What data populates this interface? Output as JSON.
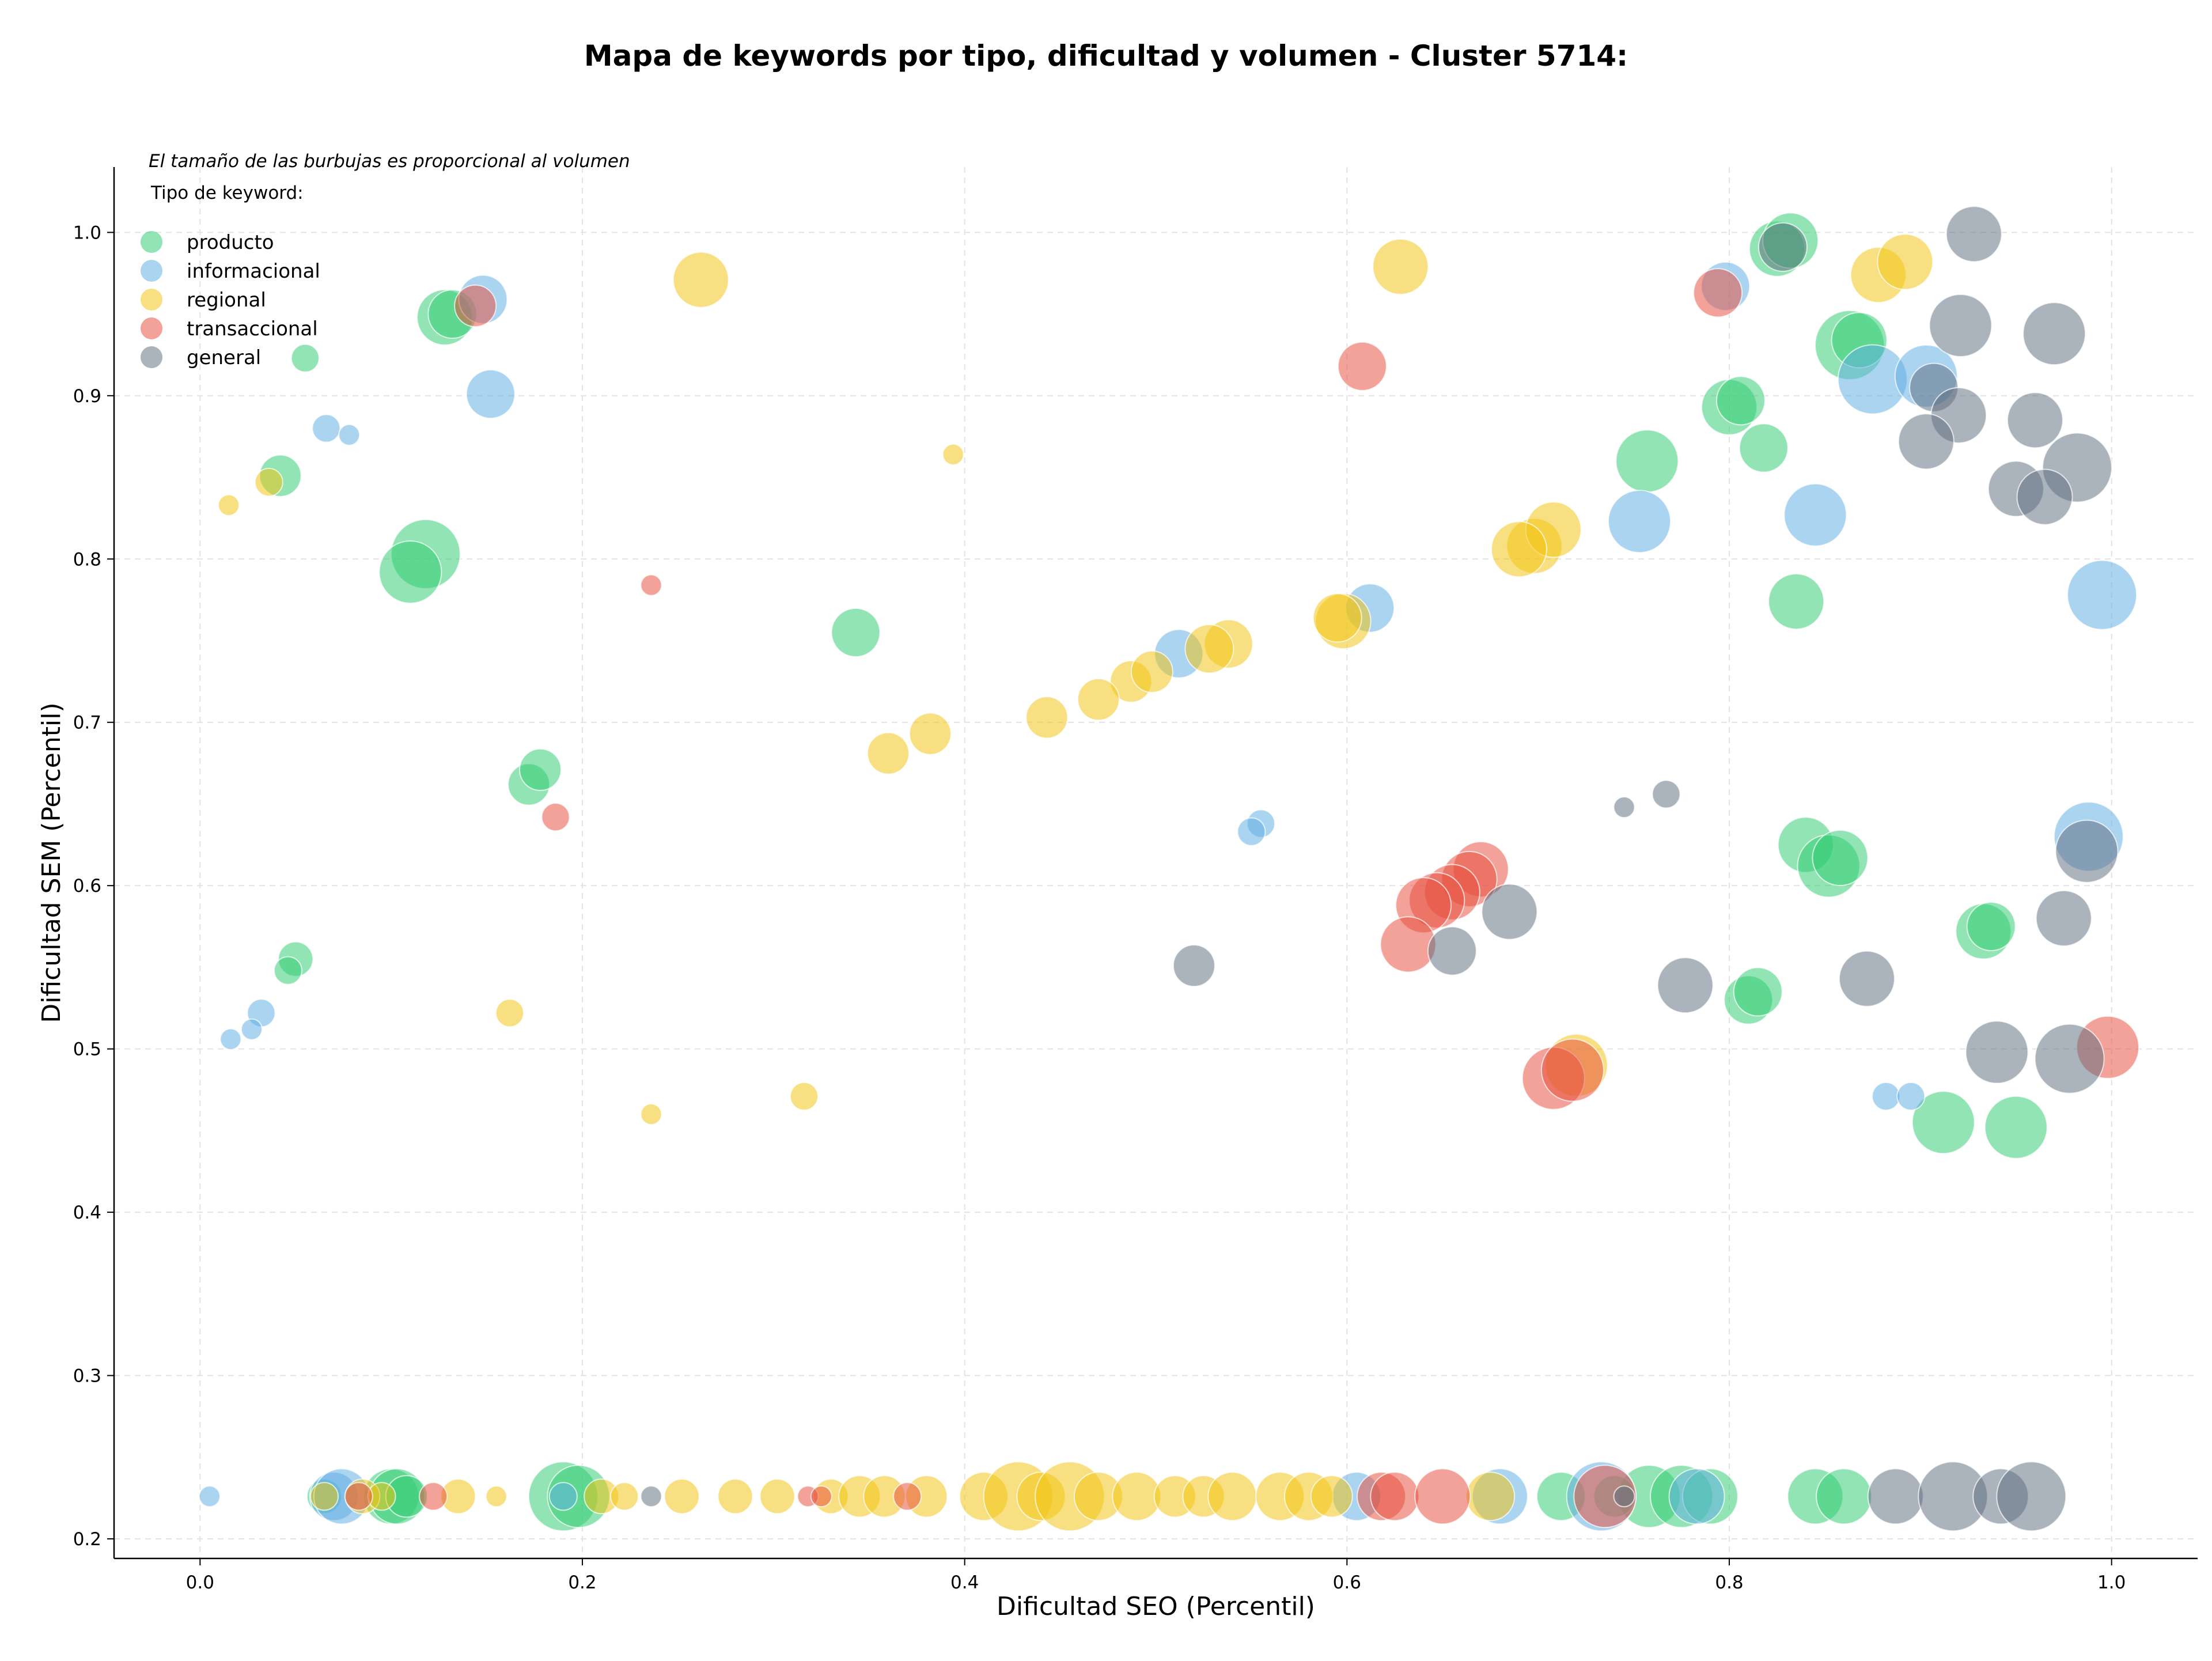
{
  "chart_data": {
    "type": "scatter",
    "title": "Mapa de keywords por tipo, dificultad y volumen - Cluster 5714:",
    "xlabel": "Dificultad SEO (Percentil)",
    "ylabel": "Dificultad SEM (Percentil)",
    "xlim": [
      -0.045,
      1.045
    ],
    "ylim": [
      0.188,
      1.04
    ],
    "xticks": [
      "0.0",
      "0.2",
      "0.4",
      "0.6",
      "0.8",
      "1.0"
    ],
    "xtick_values": [
      0,
      0.2,
      0.4,
      0.6,
      0.8,
      1.0
    ],
    "yticks": [
      "0.2",
      "0.3",
      "0.4",
      "0.5",
      "0.6",
      "0.7",
      "0.8",
      "0.9",
      "1.0"
    ],
    "ytick_values": [
      0.2,
      0.3,
      0.4,
      0.5,
      0.6,
      0.7,
      0.8,
      0.9,
      1.0
    ],
    "grid": true,
    "note": "El tamaño de las burbujas es proporcional al volumen",
    "legend_title": "Tipo de keyword:",
    "legend_position": "top-left",
    "series": [
      {
        "name": "producto",
        "color": "#2ecc71",
        "points": [
          [
            0.055,
            0.923,
            4
          ],
          [
            0.042,
            0.851,
            6
          ],
          [
            0.128,
            0.948,
            8
          ],
          [
            0.132,
            0.95,
            7
          ],
          [
            0.118,
            0.803,
            10
          ],
          [
            0.11,
            0.792,
            9
          ],
          [
            0.343,
            0.755,
            7
          ],
          [
            0.172,
            0.662,
            6
          ],
          [
            0.178,
            0.671,
            6
          ],
          [
            0.05,
            0.555,
            5
          ],
          [
            0.046,
            0.548,
            4
          ],
          [
            0.757,
            0.86,
            9
          ],
          [
            0.8,
            0.893,
            8
          ],
          [
            0.806,
            0.897,
            7
          ],
          [
            0.818,
            0.868,
            7
          ],
          [
            0.825,
            0.99,
            8
          ],
          [
            0.832,
            0.995,
            8
          ],
          [
            0.863,
            0.931,
            10
          ],
          [
            0.868,
            0.934,
            8
          ],
          [
            0.835,
            0.774,
            8
          ],
          [
            0.84,
            0.625,
            8
          ],
          [
            0.852,
            0.612,
            9
          ],
          [
            0.858,
            0.617,
            8
          ],
          [
            0.81,
            0.53,
            7
          ],
          [
            0.815,
            0.535,
            7
          ],
          [
            0.933,
            0.572,
            8
          ],
          [
            0.937,
            0.575,
            7
          ],
          [
            0.912,
            0.455,
            9
          ],
          [
            0.95,
            0.452,
            9
          ],
          [
            0.065,
            0.226,
            5
          ],
          [
            0.1,
            0.226,
            8
          ],
          [
            0.103,
            0.226,
            8
          ],
          [
            0.108,
            0.226,
            6
          ],
          [
            0.19,
            0.226,
            10
          ],
          [
            0.198,
            0.226,
            9
          ],
          [
            0.712,
            0.226,
            7
          ],
          [
            0.758,
            0.226,
            9
          ],
          [
            0.775,
            0.226,
            9
          ],
          [
            0.79,
            0.226,
            8
          ],
          [
            0.845,
            0.226,
            8
          ],
          [
            0.86,
            0.226,
            8
          ],
          [
            0.74,
            0.226,
            6
          ]
        ]
      },
      {
        "name": "informacional",
        "color": "#5dade2",
        "points": [
          [
            0.148,
            0.959,
            7
          ],
          [
            0.152,
            0.901,
            7
          ],
          [
            0.066,
            0.88,
            4
          ],
          [
            0.078,
            0.876,
            3
          ],
          [
            0.032,
            0.522,
            4
          ],
          [
            0.016,
            0.506,
            3
          ],
          [
            0.027,
            0.512,
            3
          ],
          [
            0.612,
            0.77,
            7
          ],
          [
            0.512,
            0.742,
            7
          ],
          [
            0.555,
            0.638,
            4
          ],
          [
            0.55,
            0.633,
            4
          ],
          [
            0.798,
            0.967,
            7
          ],
          [
            0.875,
            0.91,
            10
          ],
          [
            0.903,
            0.912,
            9
          ],
          [
            0.845,
            0.827,
            9
          ],
          [
            0.753,
            0.823,
            9
          ],
          [
            0.995,
            0.778,
            10
          ],
          [
            0.988,
            0.63,
            10
          ],
          [
            0.882,
            0.471,
            4
          ],
          [
            0.895,
            0.471,
            4
          ],
          [
            0.005,
            0.226,
            3
          ],
          [
            0.07,
            0.226,
            7
          ],
          [
            0.074,
            0.226,
            8
          ],
          [
            0.19,
            0.226,
            4
          ],
          [
            0.605,
            0.226,
            7
          ],
          [
            0.68,
            0.226,
            8
          ],
          [
            0.733,
            0.226,
            10
          ],
          [
            0.783,
            0.226,
            8
          ]
        ]
      },
      {
        "name": "regional",
        "color": "#f1c40f",
        "points": [
          [
            0.262,
            0.971,
            8
          ],
          [
            0.628,
            0.979,
            8
          ],
          [
            0.878,
            0.974,
            8
          ],
          [
            0.892,
            0.982,
            8
          ],
          [
            0.036,
            0.847,
            4
          ],
          [
            0.015,
            0.833,
            3
          ],
          [
            0.394,
            0.864,
            3
          ],
          [
            0.698,
            0.808,
            8
          ],
          [
            0.708,
            0.818,
            8
          ],
          [
            0.69,
            0.806,
            8
          ],
          [
            0.598,
            0.762,
            8
          ],
          [
            0.595,
            0.764,
            7
          ],
          [
            0.538,
            0.748,
            7
          ],
          [
            0.528,
            0.745,
            7
          ],
          [
            0.487,
            0.725,
            6
          ],
          [
            0.498,
            0.731,
            6
          ],
          [
            0.47,
            0.714,
            6
          ],
          [
            0.443,
            0.703,
            6
          ],
          [
            0.382,
            0.693,
            6
          ],
          [
            0.36,
            0.681,
            6
          ],
          [
            0.162,
            0.522,
            4
          ],
          [
            0.316,
            0.471,
            4
          ],
          [
            0.236,
            0.46,
            3
          ],
          [
            0.72,
            0.49,
            9
          ],
          [
            0.065,
            0.226,
            4
          ],
          [
            0.085,
            0.226,
            5
          ],
          [
            0.095,
            0.226,
            4
          ],
          [
            0.135,
            0.226,
            5
          ],
          [
            0.155,
            0.226,
            3
          ],
          [
            0.21,
            0.226,
            5
          ],
          [
            0.222,
            0.226,
            4
          ],
          [
            0.252,
            0.226,
            5
          ],
          [
            0.28,
            0.226,
            5
          ],
          [
            0.302,
            0.226,
            5
          ],
          [
            0.33,
            0.226,
            5
          ],
          [
            0.345,
            0.226,
            6
          ],
          [
            0.358,
            0.226,
            6
          ],
          [
            0.38,
            0.226,
            6
          ],
          [
            0.41,
            0.226,
            7
          ],
          [
            0.428,
            0.226,
            10
          ],
          [
            0.44,
            0.226,
            7
          ],
          [
            0.455,
            0.226,
            10
          ],
          [
            0.47,
            0.226,
            7
          ],
          [
            0.49,
            0.226,
            7
          ],
          [
            0.51,
            0.226,
            6
          ],
          [
            0.525,
            0.226,
            6
          ],
          [
            0.54,
            0.226,
            7
          ],
          [
            0.565,
            0.226,
            7
          ],
          [
            0.58,
            0.226,
            7
          ],
          [
            0.592,
            0.226,
            6
          ],
          [
            0.675,
            0.226,
            7
          ]
        ]
      },
      {
        "name": "transaccional",
        "color": "#e74c3c",
        "points": [
          [
            0.144,
            0.955,
            6
          ],
          [
            0.608,
            0.918,
            7
          ],
          [
            0.794,
            0.963,
            7
          ],
          [
            0.236,
            0.784,
            3
          ],
          [
            0.186,
            0.642,
            4
          ],
          [
            0.67,
            0.61,
            8
          ],
          [
            0.664,
            0.604,
            8
          ],
          [
            0.655,
            0.596,
            8
          ],
          [
            0.647,
            0.591,
            8
          ],
          [
            0.64,
            0.588,
            8
          ],
          [
            0.632,
            0.564,
            8
          ],
          [
            0.708,
            0.482,
            9
          ],
          [
            0.718,
            0.487,
            9
          ],
          [
            0.998,
            0.501,
            9
          ],
          [
            0.083,
            0.226,
            4
          ],
          [
            0.122,
            0.226,
            4
          ],
          [
            0.318,
            0.226,
            3
          ],
          [
            0.325,
            0.226,
            3
          ],
          [
            0.37,
            0.226,
            4
          ],
          [
            0.618,
            0.226,
            7
          ],
          [
            0.625,
            0.226,
            7
          ],
          [
            0.65,
            0.226,
            8
          ],
          [
            0.735,
            0.226,
            9
          ]
        ]
      },
      {
        "name": "general",
        "color": "#5d6d7e",
        "points": [
          [
            0.928,
            0.999,
            8
          ],
          [
            0.921,
            0.943,
            9
          ],
          [
            0.97,
            0.938,
            9
          ],
          [
            0.907,
            0.905,
            7
          ],
          [
            0.92,
            0.888,
            8
          ],
          [
            0.96,
            0.885,
            8
          ],
          [
            0.903,
            0.872,
            8
          ],
          [
            0.982,
            0.856,
            10
          ],
          [
            0.95,
            0.843,
            8
          ],
          [
            0.965,
            0.838,
            8
          ],
          [
            0.828,
            0.991,
            7
          ],
          [
            0.987,
            0.621,
            9
          ],
          [
            0.975,
            0.58,
            8
          ],
          [
            0.685,
            0.584,
            8
          ],
          [
            0.655,
            0.56,
            7
          ],
          [
            0.52,
            0.551,
            6
          ],
          [
            0.872,
            0.543,
            8
          ],
          [
            0.777,
            0.539,
            8
          ],
          [
            0.94,
            0.498,
            9
          ],
          [
            0.978,
            0.494,
            10
          ],
          [
            0.745,
            0.648,
            3
          ],
          [
            0.767,
            0.656,
            4
          ],
          [
            0.236,
            0.226,
            3
          ],
          [
            0.745,
            0.226,
            3
          ],
          [
            0.887,
            0.226,
            8
          ],
          [
            0.917,
            0.226,
            10
          ],
          [
            0.942,
            0.226,
            8
          ],
          [
            0.958,
            0.226,
            10
          ]
        ]
      }
    ]
  }
}
